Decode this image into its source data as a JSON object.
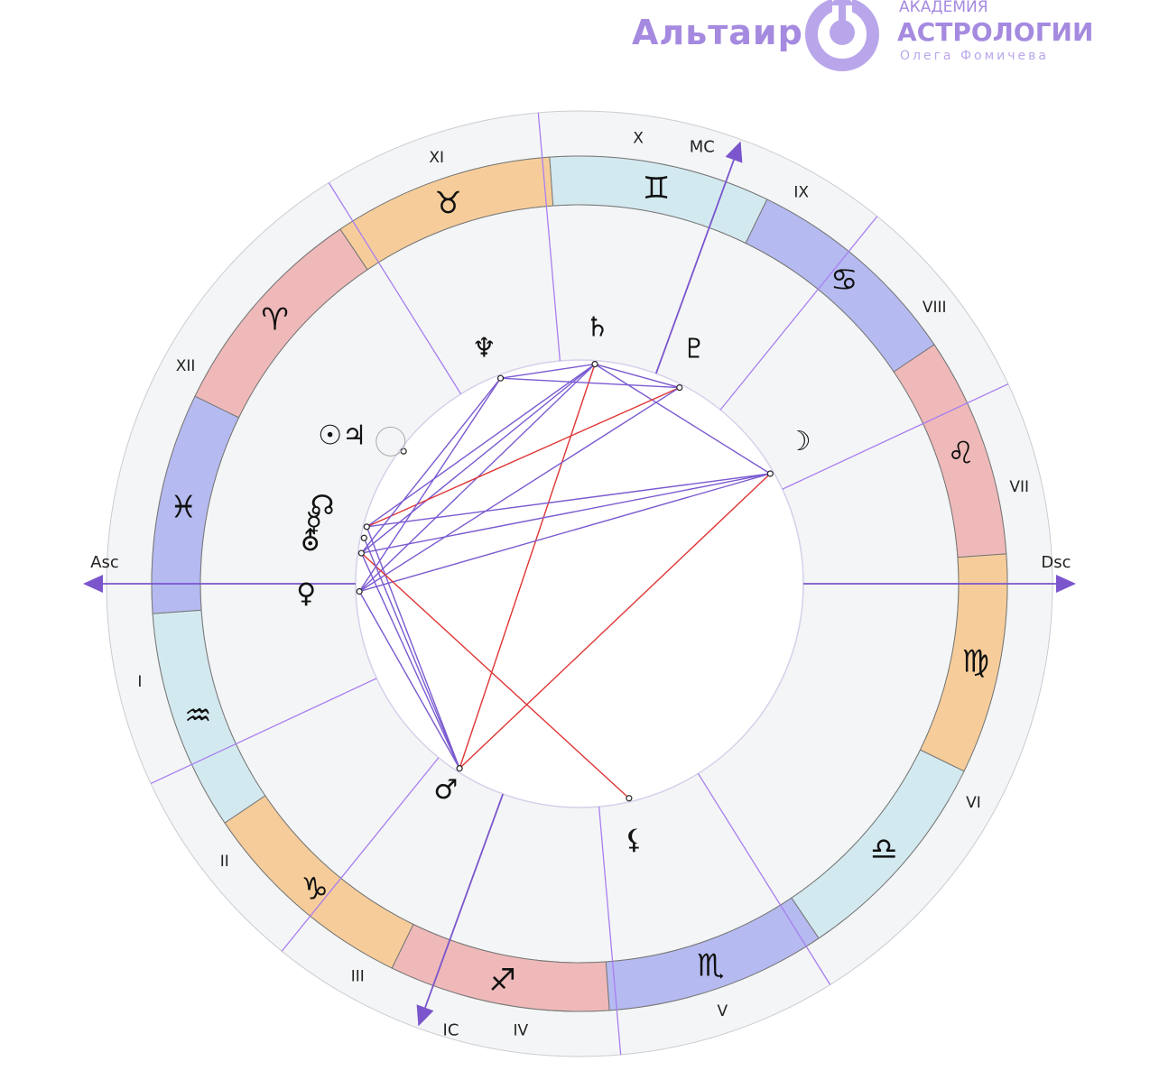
{
  "logo": {
    "brand": "Альтаир",
    "line1": "АКАДЕМИЯ",
    "line2": "АСТРОЛОГИИ",
    "line3": "Олега Фомичева",
    "icon": "altair-logo-icon",
    "color": "#a58ae0"
  },
  "axes": {
    "asc": "Asc",
    "dsc": "Dsc",
    "mc": "MC",
    "ic": "IC"
  },
  "houses": [
    {
      "label": "I",
      "cusp": 180
    },
    {
      "label": "II",
      "cusp": 205
    },
    {
      "label": "III",
      "cusp": 231
    },
    {
      "label": "IV",
      "cusp": 250
    },
    {
      "label": "V",
      "cusp": 275
    },
    {
      "label": "VI",
      "cusp": 302
    },
    {
      "label": "VII",
      "cusp": 360
    },
    {
      "label": "VIII",
      "cusp": 25
    },
    {
      "label": "IX",
      "cusp": 51
    },
    {
      "label": "X",
      "cusp": 70
    },
    {
      "label": "XI",
      "cusp": 95
    },
    {
      "label": "XII",
      "cusp": 122
    }
  ],
  "signs": [
    {
      "glyph": "♈",
      "name": "aries",
      "color": "#efb9b9"
    },
    {
      "glyph": "♉",
      "name": "taurus",
      "color": "#f6cd9a"
    },
    {
      "glyph": "♊",
      "name": "gemini",
      "color": "#d3e9f0"
    },
    {
      "glyph": "♋",
      "name": "cancer",
      "color": "#b5baf0"
    },
    {
      "glyph": "♌",
      "name": "leo",
      "color": "#efb9b9"
    },
    {
      "glyph": "♍",
      "name": "virgo",
      "color": "#f6cd9a"
    },
    {
      "glyph": "♎",
      "name": "libra",
      "color": "#d3e9f0"
    },
    {
      "glyph": "♏",
      "name": "scorpio",
      "color": "#b5baf0"
    },
    {
      "glyph": "♐",
      "name": "sagittarius",
      "color": "#efb9b9"
    },
    {
      "glyph": "♑",
      "name": "capricorn",
      "color": "#f6cd9a"
    },
    {
      "glyph": "♒",
      "name": "aquarius",
      "color": "#d3e9f0"
    },
    {
      "glyph": "♓",
      "name": "pisces",
      "color": "#b5baf0"
    }
  ],
  "aries_start_angle": 154,
  "planets": [
    {
      "glyph": "♄",
      "name": "saturn",
      "angle": 86,
      "glyph_angle": 86,
      "glyph_r": 285
    },
    {
      "glyph": "♇",
      "name": "pluto",
      "angle": 63,
      "glyph_angle": 64,
      "glyph_r": 290
    },
    {
      "glyph": "☽",
      "name": "moon",
      "angle": 30,
      "glyph_angle": 33,
      "glyph_r": 290
    },
    {
      "glyph": "♆",
      "name": "neptune",
      "angle": 111,
      "glyph_angle": 112,
      "glyph_r": 282
    },
    {
      "glyph": "☉♃",
      "name": "sun-jupiter",
      "angle": 143,
      "glyph_angle": 148,
      "glyph_r": 310
    },
    {
      "glyph": "☊",
      "name": "north-node",
      "angle": 165,
      "glyph_angle": 163,
      "glyph_r": 298
    },
    {
      "glyph": "☿",
      "name": "mercury",
      "angle": 168,
      "glyph_angle": 167,
      "glyph_r": 302
    },
    {
      "glyph": "⛢",
      "name": "uranus",
      "angle": 172,
      "glyph_angle": 171,
      "glyph_r": 302
    },
    {
      "glyph": "♀",
      "name": "venus",
      "angle": 182,
      "glyph_angle": 182,
      "glyph_r": 303
    },
    {
      "glyph": "♂",
      "name": "mars",
      "angle": 237,
      "glyph_angle": 237,
      "glyph_r": 272
    },
    {
      "glyph": "⚸",
      "name": "lilith",
      "angle": 283,
      "glyph_angle": 282,
      "glyph_r": 290
    }
  ],
  "aspects": [
    {
      "from": "saturn",
      "to": "pluto",
      "type": "harmonic"
    },
    {
      "from": "saturn",
      "to": "moon",
      "type": "harmonic"
    },
    {
      "from": "saturn",
      "to": "neptune",
      "type": "harmonic"
    },
    {
      "from": "saturn",
      "to": "north-node",
      "type": "harmonic"
    },
    {
      "from": "saturn",
      "to": "uranus",
      "type": "harmonic"
    },
    {
      "from": "saturn",
      "to": "mars",
      "type": "tense"
    },
    {
      "from": "saturn",
      "to": "venus",
      "type": "harmonic"
    },
    {
      "from": "pluto",
      "to": "neptune",
      "type": "harmonic"
    },
    {
      "from": "pluto",
      "to": "north-node",
      "type": "tense"
    },
    {
      "from": "pluto",
      "to": "venus",
      "type": "harmonic"
    },
    {
      "from": "moon",
      "to": "mars",
      "type": "tense"
    },
    {
      "from": "moon",
      "to": "north-node",
      "type": "harmonic"
    },
    {
      "from": "moon",
      "to": "uranus",
      "type": "harmonic"
    },
    {
      "from": "moon",
      "to": "venus",
      "type": "harmonic"
    },
    {
      "from": "neptune",
      "to": "venus",
      "type": "harmonic"
    },
    {
      "from": "neptune",
      "to": "uranus",
      "type": "harmonic"
    },
    {
      "from": "north-node",
      "to": "mars",
      "type": "harmonic"
    },
    {
      "from": "uranus",
      "to": "mars",
      "type": "harmonic"
    },
    {
      "from": "uranus",
      "to": "lilith",
      "type": "tense"
    },
    {
      "from": "mercury",
      "to": "mars",
      "type": "harmonic"
    },
    {
      "from": "venus",
      "to": "mars",
      "type": "harmonic"
    }
  ],
  "colors": {
    "cusp_line": "#a77ef0",
    "axis": "#7a55cc",
    "harmonic": "#7a5ad0",
    "tense": "#e03434",
    "outer_band": "#f4f5f6",
    "ring_border": "#c9ccd2"
  }
}
